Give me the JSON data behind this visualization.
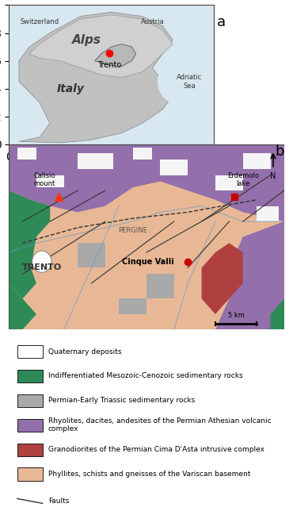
{
  "fig_width": 3.7,
  "fig_height": 6.49,
  "background_color": "#ffffff",
  "panel_a": {
    "label": "a",
    "map_bg": "#c8c8c8",
    "italy_color": "#b0b0b0",
    "alps_color": "#d0d0d0",
    "sea_color": "#e8f0f8",
    "trento_dot_color": "#ff0000",
    "trento_label": "Trento",
    "labels": [
      "Switzerland",
      "Austria",
      "Italy",
      "Adriatic\nSea",
      "Alps"
    ],
    "label_fontsize": 7,
    "alps_fontsize": 11
  },
  "panel_b": {
    "label": "b",
    "colors": {
      "quaternary": "#f5f5f5",
      "mesozoic": "#2e8b57",
      "permian_triassic": "#a9a9a9",
      "rhyolites": "#9370ab",
      "granodiorites": "#b04040",
      "phyllites": "#e8b896"
    },
    "locations": {
      "Calisio\nmount": {
        "marker": "^",
        "color": "#ff3300"
      },
      "Erdemolo\nlake": {
        "marker": "s",
        "color": "#cc0000"
      },
      "Cinque Valli": {
        "marker": "o",
        "color": "#cc0000"
      },
      "TRENTO": {
        "style": "bold"
      },
      "PERGINE": {
        "style": "normal"
      }
    },
    "north_arrow": true,
    "scale_bar_label": "5 km"
  },
  "legend": {
    "items": [
      {
        "color": "#ffffff",
        "edge": "#000000",
        "label": "Quaternary deposits"
      },
      {
        "color": "#2e8b57",
        "edge": "#000000",
        "label": "Indifferentiated Mesozoic-Cenozoic sedimentary rocks"
      },
      {
        "color": "#a9a9a9",
        "edge": "#000000",
        "label": "Permian-Early Triassic sedimentary rocks"
      },
      {
        "color": "#9370ab",
        "edge": "#000000",
        "label": "Rhyolites, dacites, andesites of the Permian Athesian volcanic complex"
      },
      {
        "color": "#b04040",
        "edge": "#000000",
        "label": "Granodiorites of the Permian Cima D'Asta intrusive complex"
      },
      {
        "color": "#e8b896",
        "edge": "#000000",
        "label": "Phyllites, schists and gneisses of the Variscan basement"
      }
    ],
    "fault_label": "Faults",
    "fontsize": 6.5
  }
}
